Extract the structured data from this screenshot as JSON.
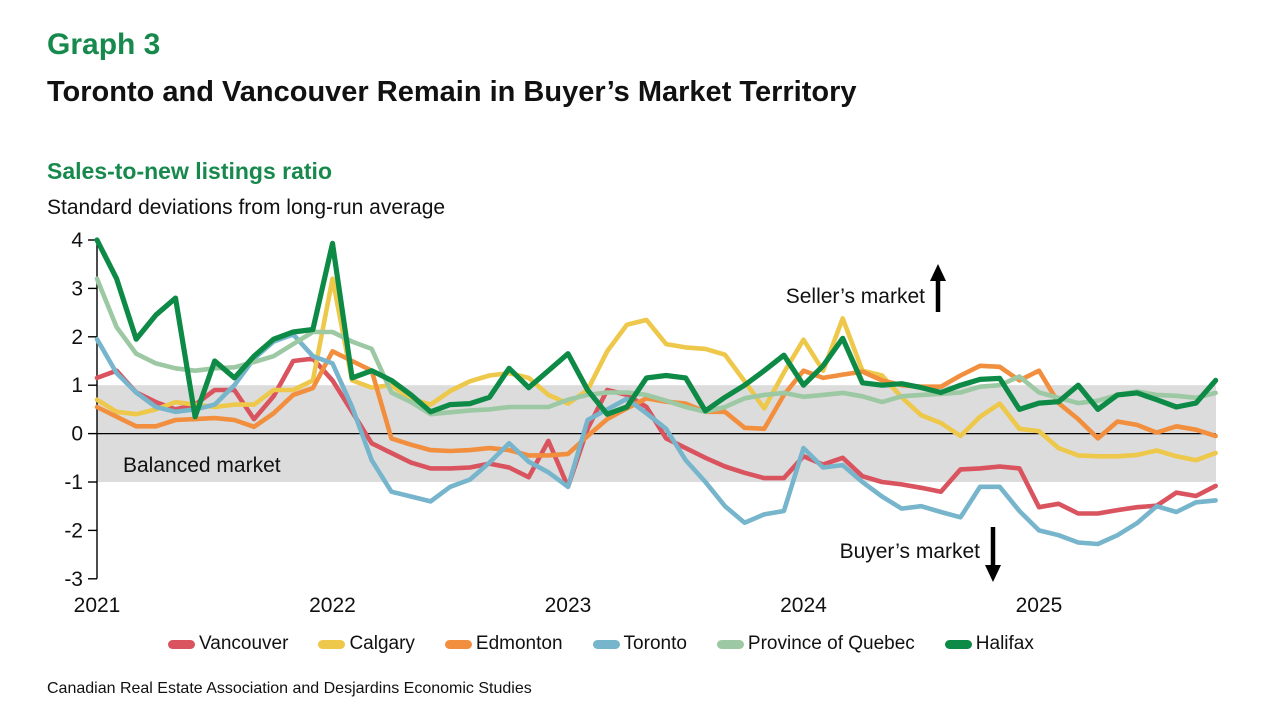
{
  "header": {
    "graph_label": "Graph 3",
    "title": "Toronto and Vancouver Remain in Buyer’s Market Territory"
  },
  "chart": {
    "subtitle": "Sales-to-new listings ratio",
    "units": "Standard deviations from long-run average"
  },
  "footer": {
    "source": "Canadian Real Estate Association and Desjardins Economic Studies"
  },
  "colors": {
    "accent_green": "#17894c",
    "band_gray": "#dcdcdc",
    "axis_black": "#000000"
  },
  "chart_data": {
    "type": "line",
    "title": "Sales-to-new listings ratio",
    "ylabel": "Standard deviations from long-run average",
    "ylim": [
      -3,
      4
    ],
    "yticks": [
      4,
      3,
      2,
      1,
      0,
      -1,
      -2,
      -3
    ],
    "grid": false,
    "legend_position": "bottom",
    "band": {
      "from": -1,
      "to": 1,
      "label": "Balanced market"
    },
    "annotations": {
      "sellers": {
        "label": "Seller’s market",
        "arrow": "up"
      },
      "buyers": {
        "label": "Buyer’s market",
        "arrow": "down"
      }
    },
    "x_year_labels": [
      {
        "label": "2021",
        "month_index": 0
      },
      {
        "label": "2022",
        "month_index": 12
      },
      {
        "label": "2023",
        "month_index": 24
      },
      {
        "label": "2024",
        "month_index": 36
      },
      {
        "label": "2025",
        "month_index": 48
      }
    ],
    "months": [
      "2021-01",
      "2021-02",
      "2021-03",
      "2021-04",
      "2021-05",
      "2021-06",
      "2021-07",
      "2021-08",
      "2021-09",
      "2021-10",
      "2021-11",
      "2021-12",
      "2022-01",
      "2022-02",
      "2022-03",
      "2022-04",
      "2022-05",
      "2022-06",
      "2022-07",
      "2022-08",
      "2022-09",
      "2022-10",
      "2022-11",
      "2022-12",
      "2023-01",
      "2023-02",
      "2023-03",
      "2023-04",
      "2023-05",
      "2023-06",
      "2023-07",
      "2023-08",
      "2023-09",
      "2023-10",
      "2023-11",
      "2023-12",
      "2024-01",
      "2024-02",
      "2024-03",
      "2024-04",
      "2024-05",
      "2024-06",
      "2024-07",
      "2024-08",
      "2024-09",
      "2024-10",
      "2024-11",
      "2024-12",
      "2025-01",
      "2025-02",
      "2025-03",
      "2025-04",
      "2025-05",
      "2025-06",
      "2025-07",
      "2025-08",
      "2025-09",
      "2025-10"
    ],
    "series": [
      {
        "name": "Vancouver",
        "color": "#d9545e",
        "values": [
          1.15,
          1.3,
          0.85,
          0.65,
          0.5,
          0.6,
          0.9,
          0.9,
          0.3,
          0.77,
          1.5,
          1.55,
          1.1,
          0.45,
          -0.2,
          -0.4,
          -0.6,
          -0.72,
          -0.72,
          -0.7,
          -0.62,
          -0.7,
          -0.9,
          -0.15,
          -1.1,
          0.1,
          0.9,
          0.8,
          0.55,
          -0.1,
          -0.3,
          -0.5,
          -0.68,
          -0.81,
          -0.92,
          -0.92,
          -0.47,
          -0.64,
          -0.5,
          -0.88,
          -1.0,
          -1.05,
          -1.12,
          -1.2,
          -0.74,
          -0.72,
          -0.68,
          -0.72,
          -1.52,
          -1.45,
          -1.65,
          -1.65,
          -1.58,
          -1.52,
          -1.49,
          -1.22,
          -1.29,
          -1.08
        ]
      },
      {
        "name": "Calgary",
        "color": "#eec84a",
        "values": [
          0.7,
          0.45,
          0.4,
          0.5,
          0.65,
          0.6,
          0.55,
          0.6,
          0.6,
          0.9,
          0.9,
          1.1,
          3.2,
          1.1,
          0.95,
          1.0,
          0.72,
          0.6,
          0.88,
          1.08,
          1.2,
          1.25,
          1.15,
          0.8,
          0.62,
          0.9,
          1.7,
          2.25,
          2.35,
          1.85,
          1.78,
          1.75,
          1.63,
          1.08,
          0.52,
          1.26,
          1.94,
          1.3,
          2.38,
          1.3,
          1.2,
          0.75,
          0.38,
          0.22,
          -0.05,
          0.35,
          0.62,
          0.1,
          0.05,
          -0.3,
          -0.45,
          -0.47,
          -0.47,
          -0.44,
          -0.35,
          -0.47,
          -0.55,
          -0.4
        ]
      },
      {
        "name": "Edmonton",
        "color": "#f28f3f",
        "values": [
          0.55,
          0.35,
          0.15,
          0.15,
          0.28,
          0.3,
          0.32,
          0.28,
          0.14,
          0.42,
          0.8,
          0.94,
          1.7,
          1.5,
          1.3,
          -0.1,
          -0.23,
          -0.34,
          -0.36,
          -0.34,
          -0.3,
          -0.34,
          -0.45,
          -0.45,
          -0.42,
          -0.05,
          0.3,
          0.52,
          0.73,
          0.66,
          0.62,
          0.45,
          0.45,
          0.12,
          0.1,
          0.8,
          1.3,
          1.15,
          1.22,
          1.28,
          1.1,
          1.0,
          0.97,
          0.97,
          1.2,
          1.4,
          1.38,
          1.1,
          1.3,
          0.63,
          0.3,
          -0.1,
          0.25,
          0.18,
          0.02,
          0.15,
          0.08,
          -0.05
        ]
      },
      {
        "name": "Toronto",
        "color": "#76b5cb",
        "values": [
          1.95,
          1.25,
          0.85,
          0.55,
          0.45,
          0.5,
          0.6,
          1.0,
          1.55,
          1.9,
          2.05,
          1.6,
          1.45,
          0.55,
          -0.55,
          -1.2,
          -1.3,
          -1.4,
          -1.1,
          -0.95,
          -0.6,
          -0.2,
          -0.58,
          -0.8,
          -1.1,
          0.28,
          0.5,
          0.72,
          0.42,
          0.1,
          -0.55,
          -1.0,
          -1.5,
          -1.84,
          -1.67,
          -1.6,
          -0.3,
          -0.7,
          -0.65,
          -1.0,
          -1.3,
          -1.55,
          -1.5,
          -1.62,
          -1.73,
          -1.1,
          -1.1,
          -1.6,
          -2.0,
          -2.1,
          -2.25,
          -2.28,
          -2.1,
          -1.85,
          -1.5,
          -1.62,
          -1.42,
          -1.38
        ]
      },
      {
        "name": "Province of Quebec",
        "color": "#9cc9a3",
        "values": [
          3.2,
          2.2,
          1.65,
          1.45,
          1.35,
          1.3,
          1.35,
          1.37,
          1.48,
          1.6,
          1.85,
          2.1,
          2.1,
          1.9,
          1.75,
          0.85,
          0.65,
          0.4,
          0.44,
          0.48,
          0.5,
          0.55,
          0.55,
          0.55,
          0.7,
          0.8,
          0.85,
          0.85,
          0.8,
          0.68,
          0.55,
          0.45,
          0.55,
          0.73,
          0.8,
          0.84,
          0.76,
          0.8,
          0.84,
          0.77,
          0.65,
          0.77,
          0.8,
          0.82,
          0.85,
          0.97,
          1.0,
          1.18,
          0.85,
          0.74,
          0.63,
          0.68,
          0.8,
          0.87,
          0.8,
          0.78,
          0.74,
          0.84
        ]
      },
      {
        "name": "Halifax",
        "color": "#0e8a47",
        "values": [
          4.0,
          3.2,
          1.95,
          2.45,
          2.8,
          0.35,
          1.5,
          1.15,
          1.6,
          1.95,
          2.1,
          2.15,
          3.93,
          1.15,
          1.3,
          1.1,
          0.8,
          0.45,
          0.6,
          0.62,
          0.75,
          1.35,
          0.95,
          1.3,
          1.65,
          0.9,
          0.4,
          0.55,
          1.15,
          1.2,
          1.15,
          0.47,
          0.75,
          1.0,
          1.3,
          1.62,
          1.0,
          1.4,
          1.97,
          1.05,
          1.0,
          1.03,
          0.95,
          0.85,
          1.0,
          1.12,
          1.14,
          0.5,
          0.63,
          0.66,
          1.0,
          0.5,
          0.8,
          0.84,
          0.7,
          0.55,
          0.63,
          1.1
        ]
      }
    ]
  }
}
